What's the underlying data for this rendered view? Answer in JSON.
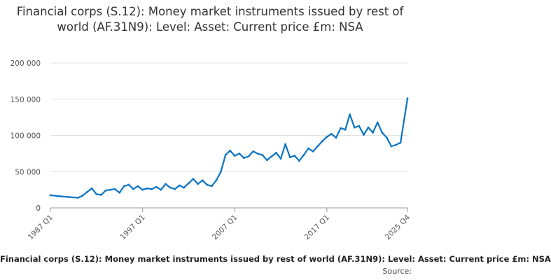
{
  "chart_data": {
    "type": "line",
    "title": "Financial corps (S.12): Money market instruments issued by rest of world (AF.31N9): Level: Asset: Current price £m: NSA",
    "xlabel": "",
    "ylabel": "",
    "ylim": [
      0,
      200000
    ],
    "y_ticks": [
      "0",
      "50 000",
      "100 000",
      "150 000",
      "200 000"
    ],
    "x_ticks": [
      "1987 Q1",
      "1997 Q1",
      "2007 Q1",
      "2017 Q1",
      "2025 Q4"
    ],
    "grid": true,
    "legend": "none",
    "series": [
      {
        "color": "#0b74c4",
        "points": [
          [
            "1987 Q1",
            17500
          ],
          [
            "1988 Q1",
            16000
          ],
          [
            "1989 Q1",
            15000
          ],
          [
            "1990 Q1",
            14000
          ],
          [
            "1990 Q3",
            17000
          ],
          [
            "1991 Q1",
            22000
          ],
          [
            "1991 Q3",
            27000
          ],
          [
            "1992 Q1",
            19000
          ],
          [
            "1992 Q3",
            18000
          ],
          [
            "1993 Q1",
            24000
          ],
          [
            "1993 Q3",
            25000
          ],
          [
            "1994 Q1",
            26000
          ],
          [
            "1994 Q3",
            21000
          ],
          [
            "1995 Q1",
            30000
          ],
          [
            "1995 Q3",
            32000
          ],
          [
            "1996 Q1",
            26000
          ],
          [
            "1996 Q3",
            30000
          ],
          [
            "1997 Q1",
            25000
          ],
          [
            "1997 Q3",
            27000
          ],
          [
            "1998 Q1",
            26000
          ],
          [
            "1998 Q3",
            29000
          ],
          [
            "1999 Q1",
            25000
          ],
          [
            "1999 Q3",
            33000
          ],
          [
            "2000 Q1",
            28000
          ],
          [
            "2000 Q3",
            26000
          ],
          [
            "2001 Q1",
            31000
          ],
          [
            "2001 Q3",
            28000
          ],
          [
            "2002 Q1",
            34000
          ],
          [
            "2002 Q3",
            40000
          ],
          [
            "2003 Q1",
            33000
          ],
          [
            "2003 Q3",
            38000
          ],
          [
            "2004 Q1",
            32000
          ],
          [
            "2004 Q3",
            30000
          ],
          [
            "2005 Q1",
            38000
          ],
          [
            "2005 Q3",
            50000
          ],
          [
            "2006 Q1",
            73000
          ],
          [
            "2006 Q3",
            79000
          ],
          [
            "2007 Q1",
            72000
          ],
          [
            "2007 Q3",
            75000
          ],
          [
            "2008 Q1",
            69000
          ],
          [
            "2008 Q3",
            71000
          ],
          [
            "2009 Q1",
            78000
          ],
          [
            "2009 Q3",
            75000
          ],
          [
            "2010 Q1",
            73000
          ],
          [
            "2010 Q3",
            66000
          ],
          [
            "2011 Q1",
            71000
          ],
          [
            "2011 Q3",
            76000
          ],
          [
            "2012 Q1",
            68000
          ],
          [
            "2012 Q3",
            88000
          ],
          [
            "2013 Q1",
            70000
          ],
          [
            "2013 Q3",
            72000
          ],
          [
            "2014 Q1",
            65000
          ],
          [
            "2014 Q3",
            73000
          ],
          [
            "2015 Q1",
            82000
          ],
          [
            "2015 Q3",
            78000
          ],
          [
            "2016 Q1",
            85000
          ],
          [
            "2016 Q3",
            92000
          ],
          [
            "2017 Q1",
            98000
          ],
          [
            "2017 Q3",
            102000
          ],
          [
            "2018 Q1",
            97000
          ],
          [
            "2018 Q3",
            110000
          ],
          [
            "2019 Q1",
            108000
          ],
          [
            "2019 Q3",
            129000
          ],
          [
            "2020 Q1",
            111000
          ],
          [
            "2020 Q3",
            113000
          ],
          [
            "2021 Q1",
            101000
          ],
          [
            "2021 Q3",
            111000
          ],
          [
            "2022 Q1",
            104000
          ],
          [
            "2022 Q3",
            118000
          ],
          [
            "2023 Q1",
            104000
          ],
          [
            "2023 Q3",
            97000
          ],
          [
            "2024 Q1",
            85000
          ],
          [
            "2024 Q3",
            87000
          ],
          [
            "2025 Q1",
            90000
          ],
          [
            "2025 Q4",
            151000
          ]
        ]
      }
    ],
    "caption": "Financial corps (S.12): Money market instruments issued by rest of world (AF.31N9): Level: Asset: Current price £m: NSA",
    "source_label": "Source:"
  }
}
